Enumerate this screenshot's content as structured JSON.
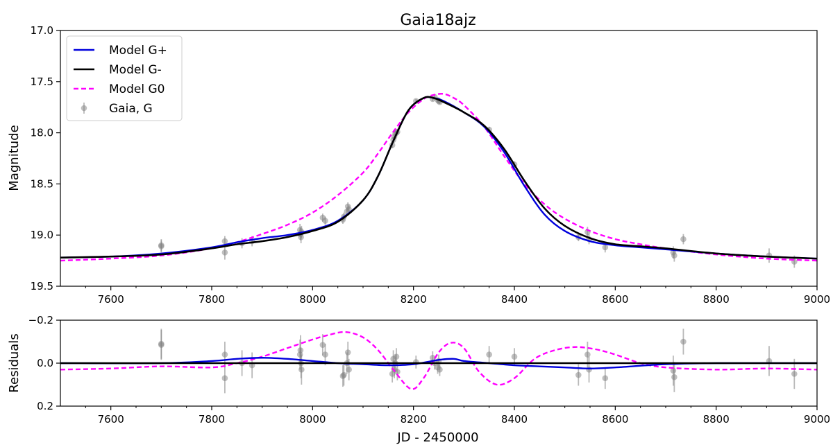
{
  "chart_data": [
    {
      "type": "line",
      "title": "Gaia18ajz",
      "xlabel": "",
      "ylabel": "Magnitude",
      "xlim": [
        7500,
        9000
      ],
      "ylim": [
        17.0,
        19.5
      ],
      "y_inverted": true,
      "xticks": [
        7600,
        7800,
        8000,
        8200,
        8400,
        8600,
        8800,
        9000
      ],
      "xtick_labels": [
        "7600",
        "7800",
        "8000",
        "8200",
        "8400",
        "8600",
        "8800",
        "9000"
      ],
      "yticks": [
        17.0,
        17.5,
        18.0,
        18.5,
        19.0,
        19.5
      ],
      "ytick_labels": [
        "17.0",
        "17.5",
        "18.0",
        "18.5",
        "19.0",
        "19.5"
      ],
      "legend_position": "top-left",
      "series": [
        {
          "name": "Model G+",
          "style": "solid",
          "color": "#0000dd",
          "x": [
            7500,
            7600,
            7700,
            7800,
            7850,
            7900,
            7950,
            8000,
            8050,
            8100,
            8130,
            8160,
            8190,
            8220,
            8240,
            8260,
            8300,
            8340,
            8380,
            8420,
            8460,
            8500,
            8550,
            8600,
            8650,
            8700,
            8800,
            8900,
            9000
          ],
          "y": [
            19.22,
            19.21,
            19.18,
            19.12,
            19.07,
            19.03,
            19.0,
            18.95,
            18.86,
            18.66,
            18.42,
            18.08,
            17.78,
            17.66,
            17.66,
            17.69,
            17.8,
            17.94,
            18.19,
            18.52,
            18.8,
            18.96,
            19.06,
            19.1,
            19.12,
            19.14,
            19.18,
            19.21,
            19.23
          ]
        },
        {
          "name": "Model G-",
          "style": "solid",
          "color": "#000000",
          "x": [
            7500,
            7600,
            7700,
            7800,
            7850,
            7900,
            7950,
            8000,
            8050,
            8100,
            8130,
            8160,
            8190,
            8220,
            8240,
            8260,
            8300,
            8340,
            8380,
            8420,
            8460,
            8500,
            8550,
            8600,
            8650,
            8700,
            8800,
            8900,
            9000
          ],
          "y": [
            19.22,
            19.21,
            19.19,
            19.13,
            19.09,
            19.06,
            19.02,
            18.96,
            18.87,
            18.66,
            18.42,
            18.08,
            17.78,
            17.66,
            17.66,
            17.7,
            17.8,
            17.93,
            18.16,
            18.47,
            18.74,
            18.91,
            19.03,
            19.09,
            19.11,
            19.13,
            19.18,
            19.21,
            19.23
          ]
        },
        {
          "name": "Model G0",
          "style": "dashed",
          "color": "#ff00ff",
          "x": [
            7500,
            7600,
            7700,
            7800,
            7850,
            7900,
            7950,
            8000,
            8050,
            8100,
            8130,
            8160,
            8190,
            8220,
            8240,
            8260,
            8280,
            8300,
            8340,
            8380,
            8420,
            8460,
            8500,
            8550,
            8600,
            8650,
            8700,
            8800,
            8900,
            9000
          ],
          "y": [
            19.25,
            19.23,
            19.2,
            19.13,
            19.07,
            18.99,
            18.9,
            18.78,
            18.61,
            18.39,
            18.2,
            17.99,
            17.8,
            17.67,
            17.63,
            17.62,
            17.66,
            17.73,
            17.94,
            18.23,
            18.5,
            18.7,
            18.84,
            18.96,
            19.04,
            19.09,
            19.13,
            19.19,
            19.23,
            19.25
          ]
        },
        {
          "name": "Gaia, G",
          "style": "errorbar",
          "color": "#808080",
          "x": [
            7700,
            7700,
            7826,
            7826,
            7860,
            7880,
            7975,
            7976,
            7977,
            7978,
            8020,
            8025,
            8060,
            8062,
            8068,
            8070,
            8072,
            8158,
            8160,
            8162,
            8164,
            8166,
            8168,
            8205,
            8238,
            8242,
            8248,
            8250,
            8252,
            8350,
            8400,
            8527,
            8545,
            8548,
            8580,
            8715,
            8717,
            8735,
            8905,
            8955
          ],
          "y": [
            19.1,
            19.11,
            19.06,
            19.17,
            19.08,
            19.06,
            18.95,
            18.99,
            19.02,
            18.97,
            18.83,
            18.86,
            18.85,
            18.82,
            18.77,
            18.72,
            18.75,
            18.12,
            18.07,
            18.04,
            18.01,
            18.0,
            17.99,
            17.69,
            17.67,
            17.65,
            17.68,
            17.69,
            17.7,
            17.97,
            18.31,
            19.02,
            18.97,
            19.04,
            19.12,
            19.17,
            19.2,
            19.04,
            19.2,
            19.26
          ],
          "yerr": [
            0.06,
            0.06,
            0.05,
            0.07,
            0.05,
            0.05,
            0.06,
            0.06,
            0.06,
            0.06,
            0.04,
            0.04,
            0.04,
            0.04,
            0.04,
            0.04,
            0.04,
            0.03,
            0.03,
            0.03,
            0.03,
            0.03,
            0.03,
            0.02,
            0.02,
            0.02,
            0.02,
            0.02,
            0.02,
            0.03,
            0.03,
            0.04,
            0.05,
            0.05,
            0.05,
            0.06,
            0.06,
            0.05,
            0.07,
            0.06
          ]
        }
      ]
    },
    {
      "type": "line",
      "title": "",
      "xlabel": "JD - 2450000",
      "ylabel": "Residuals",
      "xlim": [
        7500,
        9000
      ],
      "ylim": [
        -0.2,
        0.2
      ],
      "y_inverted": true,
      "xticks": [
        7600,
        7800,
        8000,
        8200,
        8400,
        8600,
        8800,
        9000
      ],
      "xtick_labels": [
        "7600",
        "7800",
        "8000",
        "8200",
        "8400",
        "8600",
        "8800",
        "9000"
      ],
      "yticks": [
        -0.2,
        0.0,
        0.2
      ],
      "ytick_labels": [
        "−0.2",
        "0.0",
        "0.2"
      ],
      "series": [
        {
          "name": "Model G+",
          "style": "solid",
          "color": "#0000dd",
          "x": [
            7500,
            7700,
            7800,
            7850,
            7900,
            7950,
            8000,
            8050,
            8100,
            8150,
            8200,
            8250,
            8280,
            8300,
            8350,
            8400,
            8450,
            8500,
            8550,
            8600,
            8700,
            8800,
            9000
          ],
          "y": [
            0.0,
            0.0,
            -0.01,
            -0.02,
            -0.025,
            -0.02,
            -0.01,
            0.0,
            0.005,
            0.01,
            0.005,
            -0.015,
            -0.02,
            -0.01,
            0.0,
            0.01,
            0.015,
            0.02,
            0.025,
            0.02,
            0.005,
            0.0,
            0.0
          ]
        },
        {
          "name": "Model G-",
          "style": "solid",
          "color": "#000000",
          "x": [
            7500,
            9000
          ],
          "y": [
            0.0,
            0.0
          ]
        },
        {
          "name": "Model G0",
          "style": "dashed",
          "color": "#ff00ff",
          "x": [
            7500,
            7600,
            7700,
            7800,
            7850,
            7900,
            7950,
            8000,
            8030,
            8065,
            8100,
            8130,
            8160,
            8195,
            8220,
            8250,
            8275,
            8300,
            8330,
            8365,
            8400,
            8440,
            8480,
            8520,
            8560,
            8600,
            8650,
            8700,
            8800,
            8900,
            9000
          ],
          "y": [
            0.03,
            0.025,
            0.015,
            0.02,
            0.0,
            -0.03,
            -0.07,
            -0.11,
            -0.13,
            -0.145,
            -0.12,
            -0.06,
            0.03,
            0.12,
            0.07,
            -0.05,
            -0.095,
            -0.07,
            0.04,
            0.1,
            0.07,
            -0.02,
            -0.06,
            -0.075,
            -0.065,
            -0.04,
            0.0,
            0.02,
            0.03,
            0.025,
            0.03
          ]
        },
        {
          "name": "Gaia, G",
          "style": "errorbar",
          "color": "#808080",
          "x": [
            7700,
            7700,
            7826,
            7826,
            7860,
            7880,
            7975,
            7976,
            7977,
            7978,
            8020,
            8025,
            8060,
            8062,
            8068,
            8070,
            8072,
            8158,
            8160,
            8162,
            8164,
            8166,
            8168,
            8205,
            8238,
            8242,
            8248,
            8250,
            8252,
            8350,
            8400,
            8527,
            8545,
            8548,
            8580,
            8715,
            8717,
            8735,
            8905,
            8955
          ],
          "y": [
            -0.09,
            -0.085,
            -0.04,
            0.07,
            0.0,
            0.01,
            -0.04,
            -0.06,
            0.0,
            0.03,
            -0.085,
            -0.04,
            0.06,
            0.055,
            0.0,
            -0.05,
            0.03,
            0.05,
            -0.02,
            0.03,
            0.0,
            -0.03,
            0.04,
            -0.005,
            -0.025,
            0.0,
            0.02,
            -0.01,
            0.03,
            -0.04,
            -0.03,
            0.055,
            -0.04,
            0.03,
            0.07,
            0.035,
            0.065,
            -0.1,
            -0.01,
            0.05
          ],
          "yerr": [
            0.07,
            0.07,
            0.06,
            0.07,
            0.06,
            0.06,
            0.07,
            0.07,
            0.07,
            0.07,
            0.05,
            0.05,
            0.05,
            0.05,
            0.05,
            0.05,
            0.05,
            0.04,
            0.04,
            0.04,
            0.04,
            0.04,
            0.04,
            0.03,
            0.03,
            0.03,
            0.03,
            0.03,
            0.03,
            0.04,
            0.04,
            0.05,
            0.06,
            0.06,
            0.05,
            0.07,
            0.07,
            0.06,
            0.07,
            0.07
          ]
        }
      ]
    }
  ]
}
